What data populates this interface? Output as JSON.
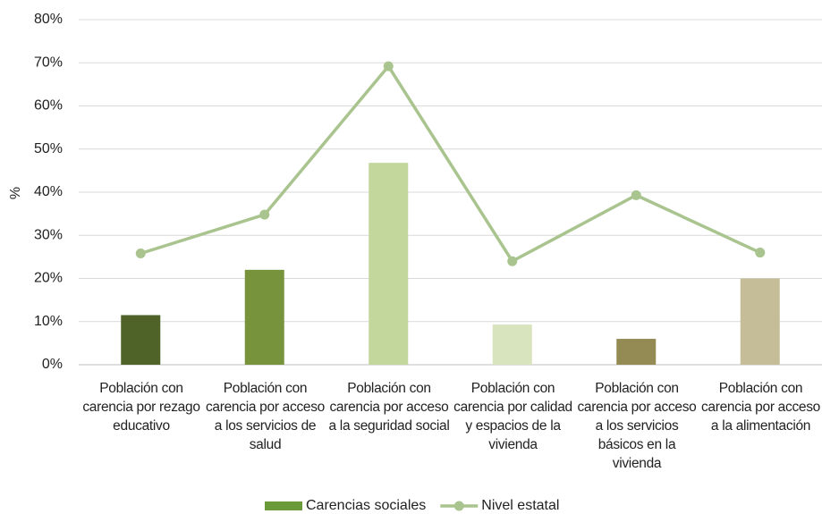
{
  "chart_data": {
    "type": "bar",
    "ylabel": "%",
    "categories": [
      "Población con carencia por rezago educativo",
      "Población con carencia por acceso a los servicios de salud",
      "Población con carencia por acceso a la seguridad social",
      "Población con carencia por calidad y espacios de la vivienda",
      "Población con carencia por acceso a los servicios básicos en la vivienda",
      "Población con carencia por acceso a la alimentación"
    ],
    "series": [
      {
        "name": "Carencias sociales",
        "type": "bar",
        "color": "#6a9a3a",
        "colors": [
          "#4f6228",
          "#77933c",
          "#c3d69b",
          "#d7e4bd",
          "#948a54",
          "#c4bd97"
        ],
        "values": [
          11.5,
          22,
          46.8,
          9.3,
          6,
          20
        ]
      },
      {
        "name": "Nivel estatal",
        "type": "line",
        "color": "#a9c48e",
        "values": [
          25.8,
          34.8,
          69.2,
          24,
          39.3,
          26
        ]
      }
    ],
    "ylim": [
      0,
      80
    ],
    "yticks": [
      {
        "value": 0,
        "label": "0%"
      },
      {
        "value": 10,
        "label": "10%"
      },
      {
        "value": 20,
        "label": "20%"
      },
      {
        "value": 30,
        "label": "30%"
      },
      {
        "value": 40,
        "label": "40%"
      },
      {
        "value": 50,
        "label": "50%"
      },
      {
        "value": 60,
        "label": "60%"
      },
      {
        "value": 70,
        "label": "70%"
      },
      {
        "value": 80,
        "label": "80%"
      }
    ],
    "grid": true
  }
}
